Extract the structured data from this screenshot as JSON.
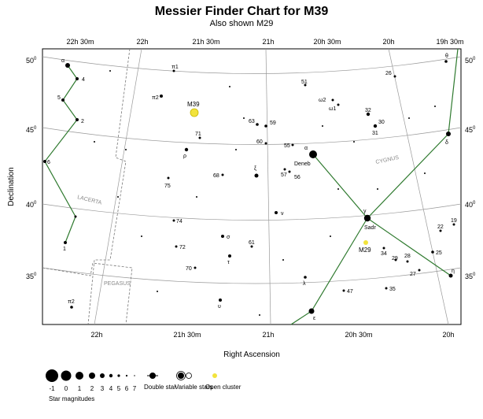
{
  "chart_data": {
    "type": "scatter",
    "title": "Messier Finder Chart for M39",
    "subtitle": "Also shown M29",
    "xlabel": "Right Ascension",
    "ylabel": "Declination",
    "ra_ticks_top": [
      "22h 30m",
      "22h",
      "21h 30m",
      "21h",
      "20h 30m",
      "20h",
      "19h 30m"
    ],
    "ra_ticks_bottom": [
      "22h",
      "21h 30m",
      "21h",
      "20h 30m",
      "20h"
    ],
    "dec_ticks": [
      {
        "base": "50",
        "sup": "0"
      },
      {
        "base": "45",
        "sup": "0"
      },
      {
        "base": "40",
        "sup": "0"
      },
      {
        "base": "35",
        "sup": "0"
      }
    ],
    "constellations": [
      "LACERTA",
      "CYGNUS",
      "PEGASUS"
    ],
    "objects": [
      {
        "label": "M39",
        "kind": "open-cluster"
      },
      {
        "label": "M29",
        "kind": "open-cluster"
      }
    ],
    "star_labels": [
      "α",
      "4",
      "5",
      "2",
      "6",
      "1",
      "π1",
      "π2",
      "ρ",
      "71",
      "75",
      "74",
      "72",
      "70",
      "σ",
      "τ",
      "υ",
      "63",
      "59",
      "60",
      "68",
      "ξ",
      "57",
      "56",
      "55",
      "α",
      "Deneb",
      "ν",
      "61",
      "λ",
      "47",
      "ε",
      "51",
      "ω2",
      "ω1",
      "32",
      "30",
      "31",
      "δ",
      "γ",
      "Sadr",
      "34",
      "29",
      "28",
      "27",
      "35",
      "25",
      "22",
      "19",
      "η",
      "θ",
      "26",
      "π2"
    ],
    "legend": {
      "magnitudes_label": "Star magnitudes",
      "magnitudes": [
        "-1",
        "0",
        "1",
        "2",
        "3",
        "4",
        "5",
        "6",
        "7"
      ],
      "double_star": "Double star",
      "variable_stars": "Variable stars",
      "open_cluster": "Open cluster"
    },
    "colors": {
      "cluster": "#f2e33c",
      "constellation_line": "#2f7a2f",
      "grid": "#999999"
    }
  }
}
